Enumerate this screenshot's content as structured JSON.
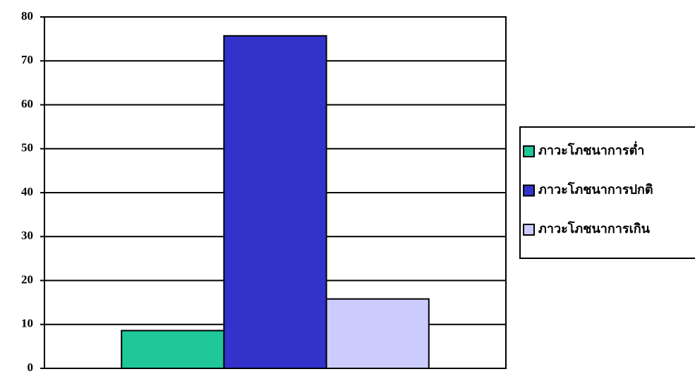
{
  "chart_data": {
    "type": "bar",
    "categories": [
      null
    ],
    "series": [
      {
        "name": "ภาวะโภชนาการต่ำ",
        "color": "#1fc79a",
        "values": [
          8.6
        ]
      },
      {
        "name": "ภาวะโภชนาการปกติ",
        "color": "#3333cc",
        "values": [
          75.7
        ]
      },
      {
        "name": "ภาวะโภชนาการเกิน",
        "color": "#ccccff",
        "values": [
          15.8
        ]
      }
    ],
    "ylim": [
      0,
      80
    ],
    "yticks": [
      0,
      10,
      20,
      30,
      40,
      50,
      60,
      70,
      80
    ],
    "grid": true,
    "legend": "right"
  }
}
